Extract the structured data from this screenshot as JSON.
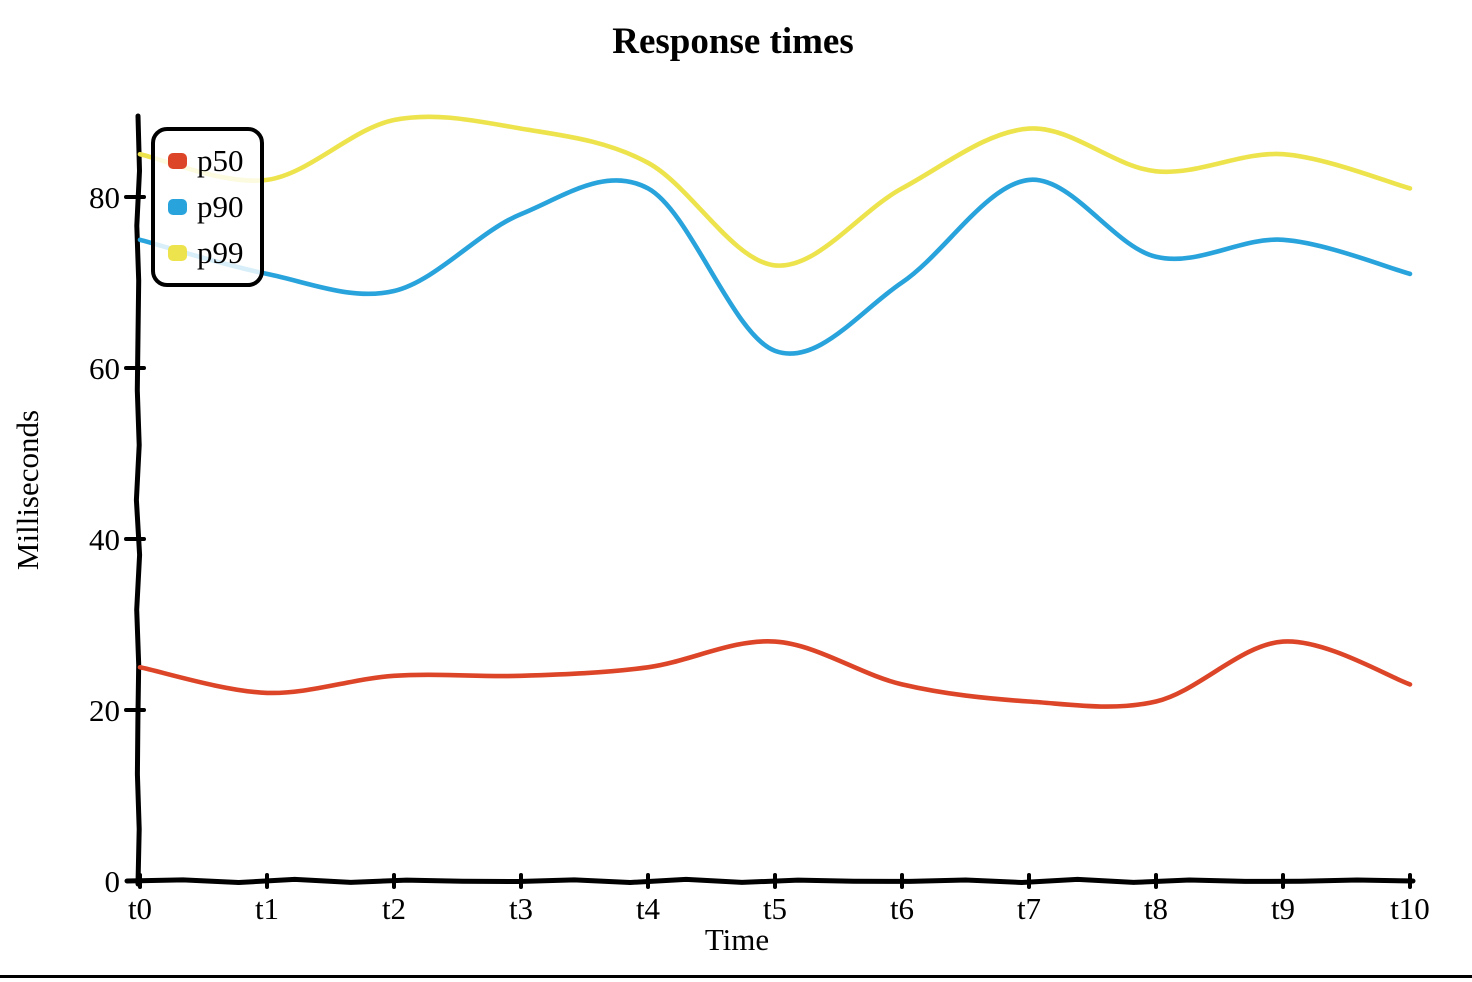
{
  "page": {
    "background": "#ffffff",
    "bottom_border_color": "#000000"
  },
  "chart_data": {
    "type": "line",
    "title": "Response times",
    "xlabel": "Time",
    "ylabel": "Milliseconds",
    "x_tick_labels": [
      "t0",
      "t1",
      "t2",
      "t3",
      "t4",
      "t5",
      "t6",
      "t7",
      "t8",
      "t9",
      "t10"
    ],
    "y_ticks": [
      0,
      20,
      40,
      60,
      80
    ],
    "ylim": [
      0,
      92
    ],
    "grid": false,
    "legend_position": "top-left",
    "axis_color": "#000000",
    "series": [
      {
        "name": "p50",
        "color": "#dd4528",
        "values": [
          25,
          22,
          24,
          24,
          25,
          28,
          23,
          21,
          21,
          28,
          23
        ]
      },
      {
        "name": "p90",
        "color": "#28a3dc",
        "values": [
          75,
          71,
          69,
          78,
          81,
          62,
          70,
          82,
          73,
          75,
          71
        ]
      },
      {
        "name": "p99",
        "color": "#ede34d",
        "values": [
          85,
          82,
          89,
          88,
          84,
          72,
          81,
          88,
          83,
          85,
          81
        ]
      }
    ]
  }
}
